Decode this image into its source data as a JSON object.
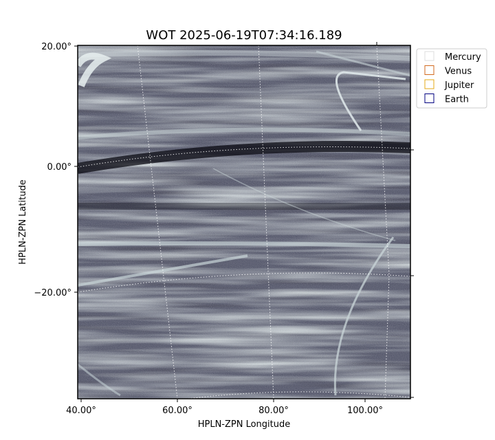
{
  "chart_data": {
    "type": "image",
    "title": "WOT 2025-06-19T07:34:16.189",
    "xlabel": "HPLN-ZPN Longitude",
    "ylabel": "HPLN-ZPN Latitude",
    "x_ticks": [
      "40.00°",
      "60.00°",
      "80.00°",
      "100.00°"
    ],
    "y_ticks": [
      "20.00°",
      "0.00°",
      "−20.00°"
    ],
    "grid": true,
    "grid_style": "dotted",
    "colormap": "bone",
    "legend": {
      "placement": "outside-top-right",
      "entries": [
        {
          "name": "Mercury",
          "color": "#dddddd"
        },
        {
          "name": "Venus",
          "color": "#d2691e"
        },
        {
          "name": "Jupiter",
          "color": "#e6a817"
        },
        {
          "name": "Earth",
          "color": "#000080"
        }
      ]
    }
  }
}
